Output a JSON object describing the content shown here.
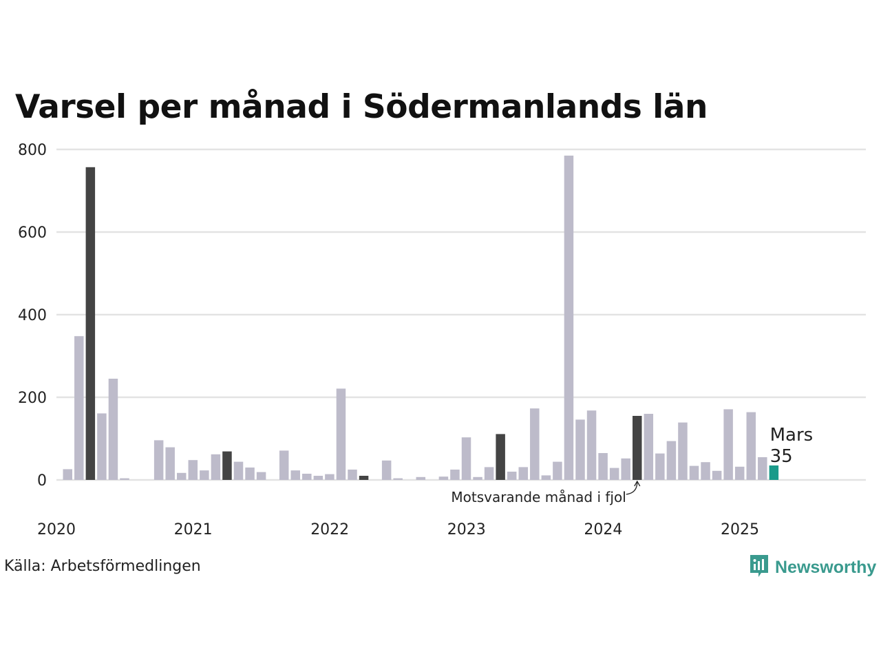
{
  "chart_data": {
    "type": "bar",
    "title": "Varsel per månad i Södermanlands län",
    "x_start": "2020-01",
    "x_ticks": [
      "2020",
      "2021",
      "2022",
      "2023",
      "2024",
      "2025"
    ],
    "y_ticks": [
      "0",
      "200",
      "400",
      "600",
      "800"
    ],
    "ylim": [
      0,
      800
    ],
    "grid": true,
    "values": [
      26,
      348,
      757,
      161,
      245,
      4,
      0,
      0,
      96,
      79,
      17,
      48,
      23,
      62,
      69,
      44,
      30,
      19,
      0,
      71,
      23,
      15,
      10,
      14,
      221,
      25,
      10,
      0,
      47,
      4,
      0,
      7,
      0,
      8,
      25,
      103,
      7,
      31,
      111,
      20,
      31,
      173,
      11,
      44,
      785,
      146,
      168,
      65,
      29,
      52,
      155,
      160,
      64,
      94,
      139,
      34,
      43,
      22,
      171,
      32,
      164,
      55,
      35
    ],
    "highlight_march_color": "#444444",
    "base_color": "#bdbbca",
    "current_color": "#1a9a8a",
    "current_label": {
      "month": "Mars",
      "value": "35"
    },
    "annotation": "Motsvarande månad i fjol"
  },
  "source": "Källa: Arbetsförmedlingen",
  "brand": {
    "name": "Newsworthy",
    "color": "#3a9a8e",
    "icon": "chart-bubble-icon"
  }
}
